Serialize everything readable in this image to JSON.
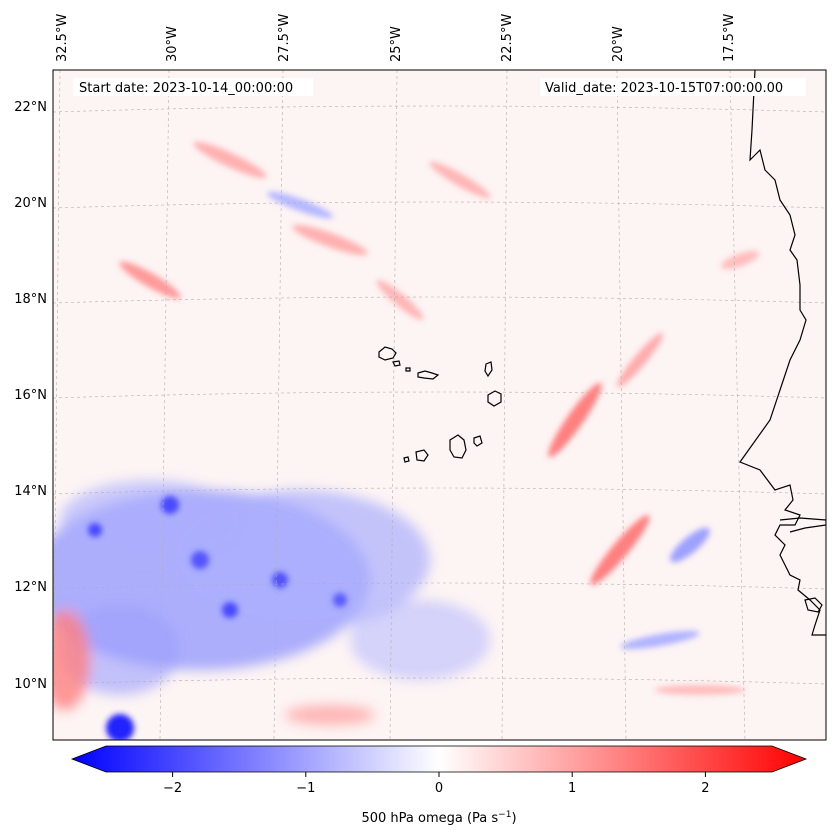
{
  "map": {
    "start_label": "Start date: 2023-10-14_00:00:00",
    "valid_label": "Valid_date: 2023-10-15T07:00:00.00",
    "lon_labels": [
      "32.5°W",
      "30°W",
      "27.5°W",
      "25°W",
      "22.5°W",
      "20°W",
      "17.5°W"
    ],
    "lat_labels": [
      "22°N",
      "20°N",
      "18°N",
      "16°N",
      "14°N",
      "12°N",
      "10°N"
    ],
    "colors": {
      "negative": "#0000ff",
      "neutral": "#ffffff",
      "positive": "#ff0000",
      "coastline": "#000000",
      "gridline": "#b0b0b0"
    }
  },
  "colorbar": {
    "tick_labels": [
      "−2",
      "−1",
      "0",
      "1",
      "2"
    ],
    "tick_values": [
      -2,
      -1,
      0,
      1,
      2
    ],
    "range": [
      -2.5,
      2.5
    ],
    "label_prefix": "500 hPa omega (Pa s",
    "label_exp": "−1",
    "label_suffix": ")"
  }
}
